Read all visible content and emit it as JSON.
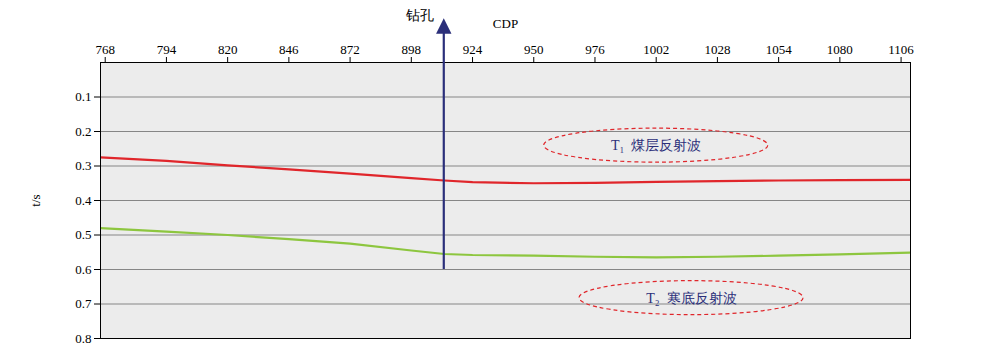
{
  "chart_data": {
    "type": "seismic_section",
    "x_label": "CDP",
    "y_label": "t/s",
    "xlim": [
      766,
      1110
    ],
    "xticks": [
      768,
      794,
      820,
      846,
      872,
      898,
      924,
      950,
      976,
      1002,
      1028,
      1054,
      1080,
      1106
    ],
    "ylim": [
      0,
      0.8
    ],
    "yticks": [
      0.1,
      0.2,
      0.3,
      0.4,
      0.5,
      0.6,
      0.7,
      0.8
    ],
    "grid": true,
    "horizons": [
      {
        "color": "#e0262b",
        "x": [
          766,
          794,
          820,
          846,
          872,
          898,
          912,
          924,
          950,
          976,
          1002,
          1028,
          1054,
          1080,
          1110
        ],
        "values": [
          0.275,
          0.285,
          0.298,
          0.31,
          0.322,
          0.335,
          0.342,
          0.347,
          0.35,
          0.349,
          0.346,
          0.344,
          0.342,
          0.341,
          0.34
        ],
        "annotation": {
          "text": "T₁  煤层反射波",
          "x": 1002,
          "y": 0.241
        }
      },
      {
        "color": "#8dc63f",
        "x": [
          766,
          794,
          820,
          846,
          872,
          898,
          912,
          924,
          950,
          976,
          1002,
          1028,
          1054,
          1080,
          1110
        ],
        "values": [
          0.48,
          0.49,
          0.5,
          0.512,
          0.525,
          0.545,
          0.555,
          0.558,
          0.56,
          0.563,
          0.565,
          0.563,
          0.56,
          0.556,
          0.551
        ],
        "annotation": {
          "text": "T₂  寒底反射波",
          "x": 1017,
          "y": 0.683
        }
      }
    ],
    "borehole": {
      "label": "钻孔",
      "x": 912,
      "y": 0.6
    }
  }
}
